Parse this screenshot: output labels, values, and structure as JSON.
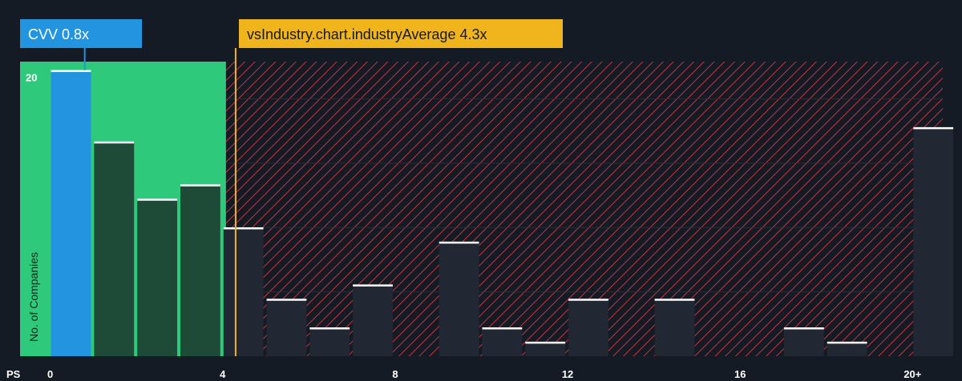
{
  "chart_data": {
    "type": "bar",
    "x_axis_label": "PS",
    "y_axis_label": "No. of Companies",
    "x_ticks": [
      "0",
      "4",
      "8",
      "12",
      "16",
      "20+"
    ],
    "x_tick_values": [
      0,
      4,
      8,
      12,
      16,
      20
    ],
    "y_ticks": [
      "20"
    ],
    "y_tick_values": [
      20
    ],
    "ylim": [
      0,
      20.6
    ],
    "xlim": [
      -0.7,
      20.7
    ],
    "bin_width": 1,
    "bin_starts": [
      0,
      1,
      2,
      3,
      4,
      5,
      6,
      7,
      8,
      9,
      10,
      11,
      12,
      13,
      14,
      15,
      16,
      17,
      18,
      19,
      20
    ],
    "values": [
      20,
      15,
      11,
      12,
      9,
      4,
      2,
      5,
      0,
      8,
      2,
      1,
      4,
      0,
      4,
      0,
      0,
      2,
      1,
      0,
      16
    ],
    "company": {
      "label": "CVV 0.8x",
      "value": 0.8,
      "color": "#2394e0"
    },
    "industry_average": {
      "label": "vsIndustry.chart.industryAverage 4.3x",
      "value": 4.3,
      "color": "#f0b41c"
    },
    "colors": {
      "background": "#151b24",
      "undervalued_zone": "#2ec97a",
      "undervalued_bar": "#1e4a38",
      "overvalued_hatch": "#c8323c",
      "overvalued_bar": "#212833",
      "bar_top": "#ffffff",
      "grid": "#2a313c"
    },
    "grid": true
  }
}
